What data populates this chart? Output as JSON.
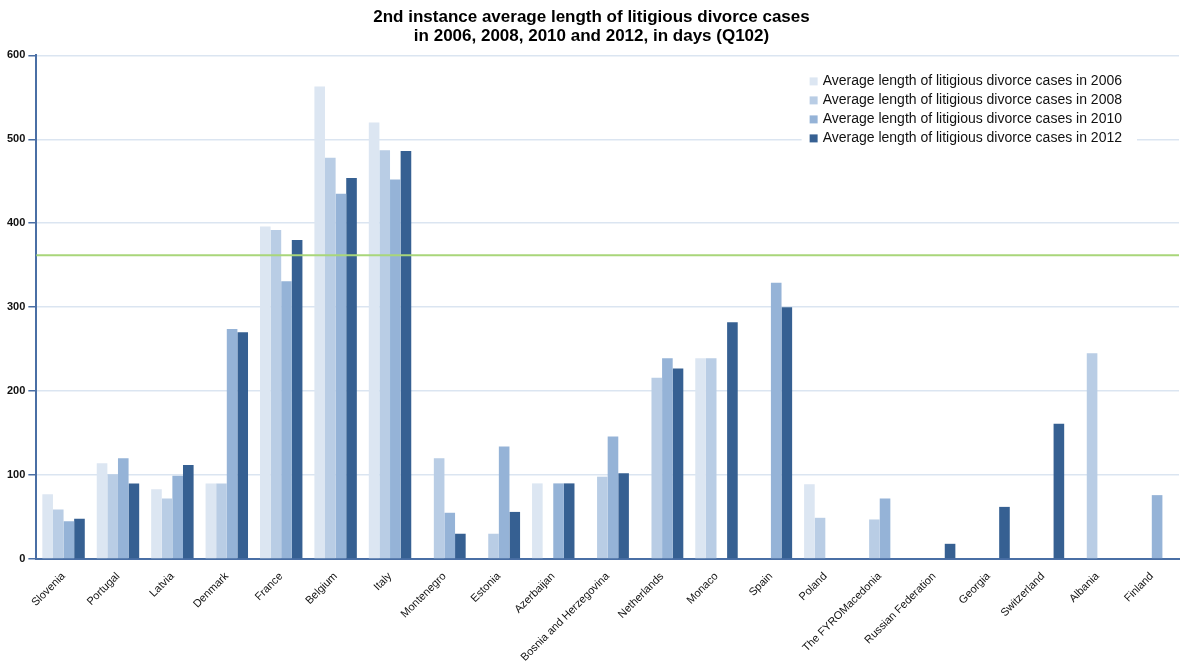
{
  "chart_data": {
    "type": "bar",
    "title": "2nd instance average length of litigious divorce cases\nin 2006, 2008, 2010 and 2012, in days (Q102)",
    "categories": [
      "Slovenia",
      "Portugal",
      "Latvia",
      "Denmark",
      "France",
      "Belgium",
      "Italy",
      "Montenegro",
      "Estonia",
      "Azerbaijan",
      "Bosnia and Herzegovina",
      "Netherlands",
      "Monaco",
      "Spain",
      "Poland",
      "The FYROMacedonia",
      "Russian Federation",
      "Georgia",
      "Switzerland",
      "Albania",
      "Finland"
    ],
    "series": [
      {
        "name": "Average length of litigious divorce cases in 2006",
        "color": "#dce6f2",
        "values": [
          77,
          114,
          83,
          90,
          396,
          563,
          520,
          null,
          null,
          90,
          null,
          null,
          239,
          null,
          89,
          null,
          null,
          null,
          null,
          null,
          null
        ]
      },
      {
        "name": "Average length of litigious divorce cases in 2008",
        "color": "#b9cde5",
        "values": [
          59,
          101,
          72,
          90,
          392,
          478,
          487,
          120,
          30,
          null,
          98,
          216,
          239,
          null,
          49,
          47,
          null,
          null,
          null,
          245,
          null
        ]
      },
      {
        "name": "Average length of litigious divorce cases in 2010",
        "color": "#95b3d7",
        "values": [
          45,
          120,
          99,
          274,
          331,
          435,
          452,
          55,
          134,
          90,
          146,
          239,
          null,
          329,
          null,
          72,
          null,
          null,
          null,
          null,
          76
        ]
      },
      {
        "name": "Average length of litigious divorce cases in 2012",
        "color": "#366092",
        "values": [
          48,
          90,
          112,
          270,
          380,
          454,
          486,
          30,
          56,
          90,
          102,
          227,
          282,
          300,
          null,
          null,
          18,
          62,
          161,
          null,
          null
        ]
      }
    ],
    "ylim": [
      0,
      600
    ],
    "yticks": [
      0,
      100,
      200,
      300,
      400,
      500,
      600
    ],
    "grid": "y",
    "legend": "top right",
    "ref_lines": [
      {
        "axis": "y",
        "value": 362,
        "color": "#a9d67a"
      }
    ]
  }
}
